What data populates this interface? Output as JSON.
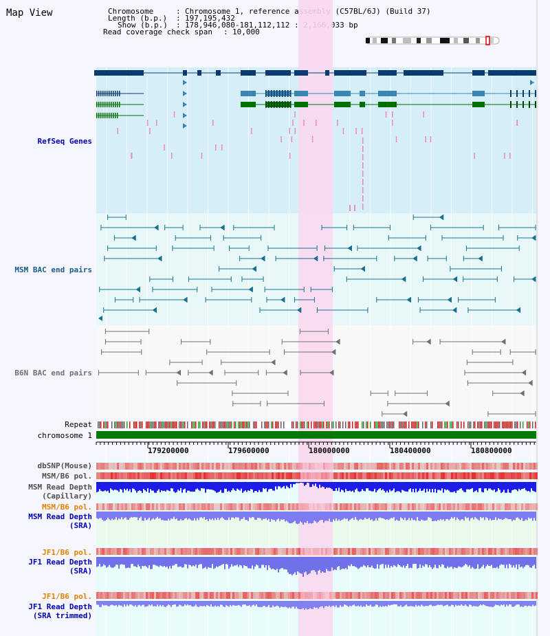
{
  "title": "Map View",
  "header": {
    "chromosome_key": "Chromosome",
    "chromosome_val": "Chromosome 1, reference assembly (C57BL/6J) (Build 37)",
    "length_key": "Length (b.p.)",
    "length_val": "197,195,432",
    "show_key": "Show (b.p.)",
    "show_val": "178,946,080-181,112,112 : 2,166,033 bp",
    "coverage_key": "Read coverage check span",
    "coverage_val": "10,000"
  },
  "tracks": {
    "refseq": "RefSeq Genes",
    "msm_bac": "MSM BAC end pairs",
    "b6n_bac": "B6N BAC end pairs",
    "repeat": "Repeat",
    "chromosome": "chromosome 1",
    "dbsnp": "dbSNP(Mouse)",
    "msm_pol": "MSM/B6 pol.",
    "msm_depth_cap_1": "MSM Read Depth",
    "msm_depth_cap_2": "(Capillary)",
    "msm_pol_2": "MSM/B6 pol.",
    "msm_depth_sra_1": "MSM Read Depth",
    "msm_depth_sra_2": "(SRA)",
    "jf1_pol_1": "JF1/B6 pol.",
    "jf1_depth_sra_1": "JF1 Read Depth",
    "jf1_depth_sra_2": "(SRA)",
    "jf1_pol_2": "JF1/B6 pol.",
    "jf1_depth_trim_1": "JF1 Read Depth",
    "jf1_depth_trim_2": "(SRA trimmed)"
  },
  "ruler": {
    "ticks": [
      "179200000",
      "179600000",
      "180000000",
      "180400000",
      "180800000"
    ]
  },
  "colors": {
    "gene_navy": "#0b3a6e",
    "gene_blue": "#3a86b0",
    "gene_green": "#007000",
    "msm_pair": "#1a6f8f",
    "b6n_pair": "#707070",
    "highlight": "#f9d8f0",
    "depth_blue": "#1c1ce6",
    "depth_light": "#8c8cf0",
    "pol_red": "#e83030",
    "label_blue": "#0000b0",
    "label_orange": "#e08000"
  }
}
